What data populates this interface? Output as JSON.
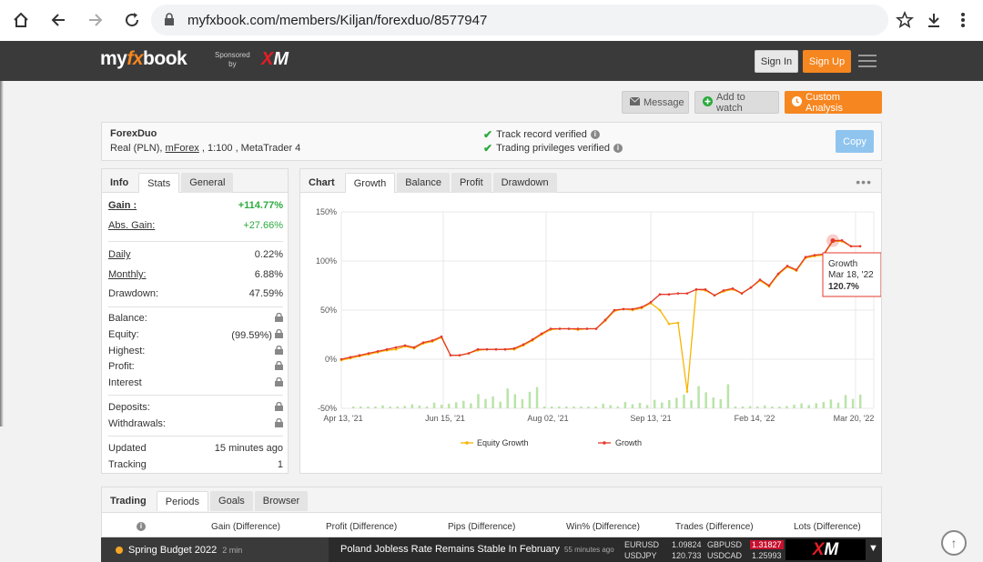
{
  "browser": {
    "url": "myfxbook.com/members/Kiljan/forexduo/8577947"
  },
  "header": {
    "logo_my": "my",
    "logo_fx": "fx",
    "logo_book": "book",
    "sponsored_line1": "Sponsored",
    "sponsored_line2": "by",
    "sponsor_x": "X",
    "sponsor_m": "M",
    "sign_in": "Sign In",
    "sign_up": "Sign Up"
  },
  "actions": {
    "message": "Message",
    "watch": "Add to watch",
    "custom": "Custom Analysis"
  },
  "account": {
    "name": "ForexDuo",
    "type": "Real (PLN), ",
    "broker": "mForex",
    "rest": " , 1:100 , MetaTrader 4",
    "verif1": "Track record verified",
    "verif2": "Trading privileges verified",
    "copy": "Copy"
  },
  "stats": {
    "tabs": [
      "Info",
      "Stats",
      "General"
    ],
    "gain_label": "Gain :",
    "gain_value": "+114.77%",
    "abs_gain_label": "Abs. Gain:",
    "abs_gain_value": "+27.66%",
    "daily_label": "Daily",
    "daily_value": "0.22%",
    "monthly_label": "Monthly:",
    "monthly_value": "6.88%",
    "drawdown_label": "Drawdown:",
    "drawdown_value": "47.59%",
    "balance_label": "Balance:",
    "equity_label": "Equity:",
    "equity_value": "(99.59%)",
    "highest_label": "Highest:",
    "profit_label": "Profit:",
    "interest_label": "Interest",
    "deposits_label": "Deposits:",
    "withdrawals_label": "Withdrawals:",
    "updated_label": "Updated",
    "updated_value": "15 minutes ago",
    "tracking_label": "Tracking",
    "tracking_value": "1"
  },
  "chart_tabs": [
    "Chart",
    "Growth",
    "Balance",
    "Profit",
    "Drawdown"
  ],
  "chart_data": {
    "type": "line",
    "title": "",
    "xlabel": "",
    "ylabel": "",
    "y_ticks": [
      "150%",
      "100%",
      "50%",
      "0%",
      "-50%"
    ],
    "x_ticks": [
      "Apr 13, '21",
      "Jun 15, '21",
      "Aug 02, '21",
      "Sep 13, '21",
      "Feb 14, '22",
      "Mar 20, '22"
    ],
    "ylim": [
      -50,
      150
    ],
    "legend": [
      "Equity Growth",
      "Growth"
    ],
    "legend_position": "bottom",
    "colors": {
      "equity": "#f7b500",
      "growth": "#e5392c",
      "bars": "#b9e4a8"
    },
    "tooltip": {
      "title": "Growth",
      "date": "Mar 18, '22",
      "value": "120.7%"
    },
    "series": [
      {
        "name": "Growth",
        "values": [
          0,
          2,
          4,
          6,
          8,
          10,
          12,
          14,
          12,
          17,
          19,
          23,
          4,
          4,
          6,
          10,
          10,
          10,
          10,
          11,
          15,
          20,
          26,
          31,
          31,
          31,
          31,
          31,
          31,
          40,
          50,
          51,
          51,
          53,
          58,
          66,
          66,
          67,
          67,
          71,
          71,
          65,
          70,
          72,
          67,
          73,
          81,
          75,
          87,
          95,
          91,
          104,
          106,
          107,
          120.7,
          121,
          115,
          115
        ]
      },
      {
        "name": "Equity Growth",
        "values": [
          -1,
          1,
          3,
          5,
          7,
          9,
          10,
          13,
          11,
          16,
          18,
          22,
          4,
          4,
          6,
          9,
          10,
          10,
          10,
          10,
          14,
          19,
          25,
          30,
          31,
          31,
          30,
          31,
          31,
          39,
          49,
          51,
          50,
          52,
          57,
          50,
          36,
          37,
          -33,
          71,
          70,
          65,
          69,
          71,
          67,
          73,
          80,
          74,
          86,
          94,
          90,
          103,
          105,
          106,
          120,
          120,
          115,
          115
        ]
      }
    ],
    "bars_values": [
      2,
      1,
      3,
      2,
      4,
      1,
      2,
      3,
      6,
      5,
      4,
      8,
      6,
      10,
      8,
      12,
      10,
      18,
      14,
      22,
      16,
      28,
      24,
      20,
      22,
      34
    ]
  },
  "trading": {
    "tabs": [
      "Trading",
      "Periods",
      "Goals",
      "Browser"
    ],
    "columns": [
      "Gain (Difference)",
      "Profit (Difference)",
      "Pips (Difference)",
      "Win% (Difference)",
      "Trades (Difference)",
      "Lots (Difference)"
    ]
  },
  "ticker": {
    "event": "Spring Budget 2022",
    "event_time": "2 min",
    "news": "Poland Jobless Rate Remains Stable In February",
    "news_ago": "55 minutes ago",
    "q1_sym": "EURUSD",
    "q1_val": "1.09824",
    "q2_sym": "GBPUSD",
    "q2_val": "1.31827",
    "q3_sym": "USDJPY",
    "q3_val": "120.733",
    "q4_sym": "USDCAD",
    "q4_val": "1.25993",
    "xm_x": "X",
    "xm_m": "M"
  }
}
